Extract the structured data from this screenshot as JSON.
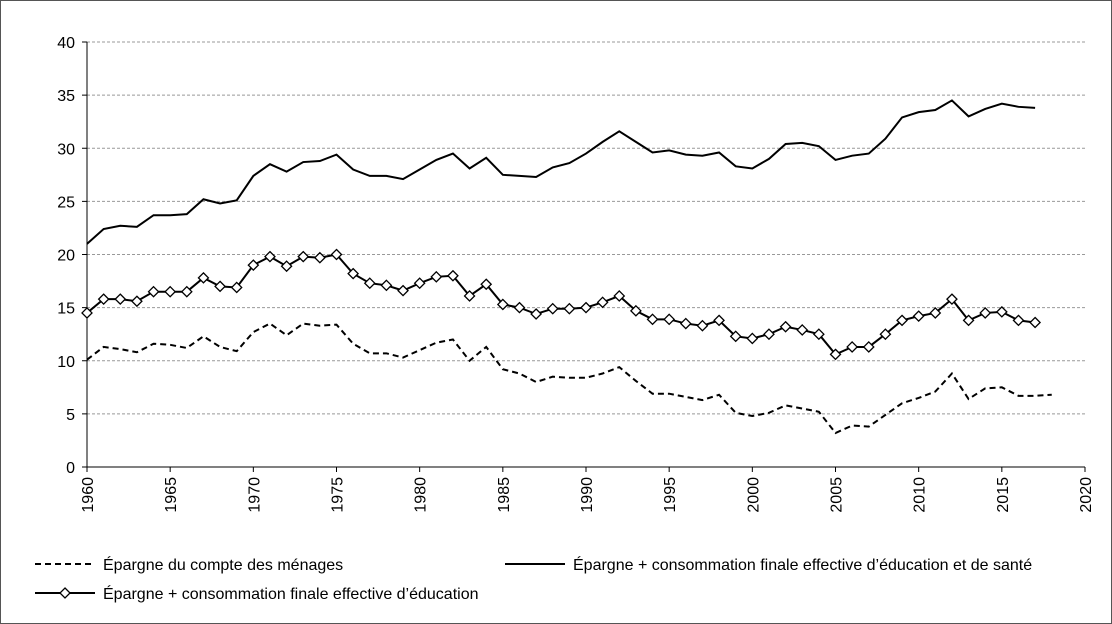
{
  "chart_data": {
    "type": "line",
    "x": [
      1960,
      1961,
      1962,
      1963,
      1964,
      1965,
      1966,
      1967,
      1968,
      1969,
      1970,
      1971,
      1972,
      1973,
      1974,
      1975,
      1976,
      1977,
      1978,
      1979,
      1980,
      1981,
      1982,
      1983,
      1984,
      1985,
      1986,
      1987,
      1988,
      1989,
      1990,
      1991,
      1992,
      1993,
      1994,
      1995,
      1996,
      1997,
      1998,
      1999,
      2000,
      2001,
      2002,
      2003,
      2004,
      2005,
      2006,
      2007,
      2008,
      2009,
      2010,
      2011,
      2012,
      2013,
      2014,
      2015,
      2016,
      2017,
      2018
    ],
    "series": [
      {
        "name": "Épargne du compte des ménages",
        "color": "#000000",
        "style": "dashed",
        "marker": "none",
        "values": [
          10.1,
          11.3,
          11.1,
          10.8,
          11.6,
          11.5,
          11.2,
          12.3,
          11.3,
          10.9,
          12.7,
          13.5,
          12.4,
          13.5,
          13.3,
          13.4,
          11.6,
          10.7,
          10.7,
          10.3,
          11.0,
          11.7,
          12.0,
          10.0,
          11.3,
          9.2,
          8.8,
          8.0,
          8.5,
          8.4,
          8.4,
          8.8,
          9.4,
          8.1,
          6.9,
          6.9,
          6.6,
          6.3,
          6.8,
          5.1,
          4.8,
          5.1,
          5.8,
          5.5,
          5.2,
          3.2,
          3.9,
          3.8,
          4.9,
          6.0,
          6.5,
          7.1,
          8.8,
          6.4,
          7.4,
          7.5,
          6.7,
          6.7,
          6.8
        ]
      },
      {
        "name": "Épargne + consommation finale effective d’éducation et de santé",
        "color": "#000000",
        "style": "solid",
        "marker": "none",
        "values": [
          21.0,
          22.4,
          22.7,
          22.6,
          23.7,
          23.7,
          23.8,
          25.2,
          24.8,
          25.1,
          27.4,
          28.5,
          27.8,
          28.7,
          28.8,
          29.4,
          28.0,
          27.4,
          27.4,
          27.1,
          28.0,
          28.9,
          29.5,
          28.1,
          29.1,
          27.5,
          27.4,
          27.3,
          28.2,
          28.6,
          29.5,
          30.6,
          31.6,
          30.6,
          29.6,
          29.8,
          29.4,
          29.3,
          29.6,
          28.3,
          28.1,
          29.0,
          30.4,
          30.5,
          30.2,
          28.9,
          29.3,
          29.5,
          30.9,
          32.9,
          33.4,
          33.6,
          34.5,
          33.0,
          33.7,
          34.2,
          33.9,
          33.8,
          null
        ]
      },
      {
        "name": "Épargne + consommation finale effective d’éducation",
        "color": "#000000",
        "style": "solid",
        "marker": "diamond",
        "values": [
          14.5,
          15.8,
          15.8,
          15.6,
          16.5,
          16.5,
          16.5,
          17.8,
          17.0,
          16.9,
          19.0,
          19.8,
          18.9,
          19.8,
          19.7,
          20.0,
          18.2,
          17.3,
          17.1,
          16.6,
          17.3,
          17.9,
          18.0,
          16.1,
          17.2,
          15.3,
          15.0,
          14.4,
          14.9,
          14.9,
          15.0,
          15.5,
          16.1,
          14.7,
          13.9,
          13.9,
          13.5,
          13.3,
          13.8,
          12.3,
          12.1,
          12.5,
          13.2,
          12.9,
          12.5,
          10.6,
          11.3,
          11.3,
          12.5,
          13.8,
          14.2,
          14.5,
          15.8,
          13.8,
          14.5,
          14.6,
          13.8,
          13.6,
          null
        ]
      }
    ],
    "xlim": [
      1960,
      2020
    ],
    "xticks": [
      1960,
      1965,
      1970,
      1975,
      1980,
      1985,
      1990,
      1995,
      2000,
      2005,
      2010,
      2015,
      2020
    ],
    "ylim": [
      0,
      40
    ],
    "yticks": [
      0,
      5,
      10,
      15,
      20,
      25,
      30,
      35,
      40
    ],
    "grid": true,
    "legend": "bottom"
  }
}
